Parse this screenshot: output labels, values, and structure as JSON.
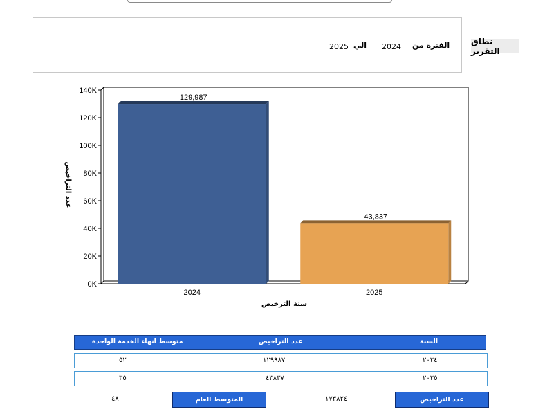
{
  "report_range": {
    "label": "نطاق التقرير",
    "period_from_label": "الفترة من",
    "from_year": "2024",
    "to_label": "الي",
    "to_year": "2025"
  },
  "chart_data": {
    "type": "bar",
    "categories": [
      "2024",
      "2025"
    ],
    "values": [
      129987,
      43837
    ],
    "value_labels": [
      "129,987",
      "43,837"
    ],
    "colors": [
      "#3e5f94",
      "#e7a353"
    ],
    "xlabel": "سنة الترخيص",
    "ylabel": "عدد التراخيص",
    "ylim": [
      0,
      140000
    ],
    "yticks": [
      0,
      20000,
      40000,
      60000,
      80000,
      100000,
      120000,
      140000
    ],
    "ytick_labels": [
      "0K",
      "20K",
      "40K",
      "60K",
      "80K",
      "100K",
      "120K",
      "140K"
    ],
    "grid": false,
    "legend": "none"
  },
  "table": {
    "headers": {
      "year": "السنة",
      "count": "عدد التراخيص",
      "avg": "متوسط انهاء الخدمة الواحدة"
    },
    "rows": [
      {
        "year": "٢٠٢٤",
        "count": "١٢٩٩٨٧",
        "avg": "٥٢"
      },
      {
        "year": "٢٠٢٥",
        "count": "٤٣٨٣٧",
        "avg": "٣٥"
      }
    ],
    "summary": {
      "count_label": "عدد التراخيص",
      "count_value": "١٧٣٨٢٤",
      "avg_label": "المتوسط العام",
      "avg_value": "٤٨"
    }
  }
}
